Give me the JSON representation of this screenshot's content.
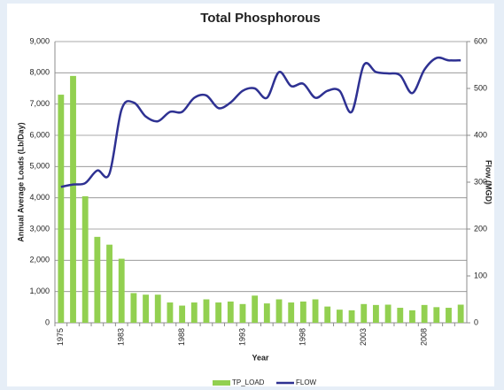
{
  "chart_data": {
    "type": "bar_line",
    "title": "Total Phosphorous",
    "x_label": "Year",
    "y_label": "Annual Average Loads (Lb/Day)",
    "y2_label": "Flow (MGD)",
    "categories": [
      "1975",
      null,
      null,
      null,
      null,
      "1983",
      null,
      null,
      null,
      null,
      "1988",
      null,
      null,
      null,
      null,
      "1993",
      null,
      null,
      null,
      null,
      "1998",
      null,
      null,
      null,
      null,
      "2003",
      null,
      null,
      null,
      null,
      "2008",
      null,
      null,
      null
    ],
    "series": [
      {
        "name": "TP_LOAD",
        "color": "#92d050",
        "type": "bar",
        "values": [
          7300,
          7900,
          4050,
          2750,
          2500,
          2050,
          950,
          900,
          900,
          650,
          550,
          650,
          750,
          650,
          680,
          600,
          870,
          620,
          750,
          650,
          680,
          750,
          520,
          420,
          400,
          600,
          570,
          580,
          480,
          400,
          570,
          500,
          480,
          580
        ]
      },
      {
        "name": "FLOW",
        "color": "#2e3192",
        "type": "line",
        "axis": "y2",
        "values": [
          290,
          295,
          298,
          325,
          318,
          455,
          470,
          440,
          430,
          450,
          450,
          480,
          485,
          458,
          470,
          495,
          500,
          480,
          535,
          505,
          510,
          480,
          495,
          495,
          450,
          550,
          535,
          532,
          528,
          490,
          540,
          565,
          560,
          560
        ]
      }
    ],
    "ylim": [
      0,
      9000
    ],
    "yticks": [
      0,
      {
        "value": 1000,
        "label": "1,000"
      },
      {
        "value": 2000,
        "label": "2,000"
      },
      {
        "value": 3000,
        "label": "3,000"
      },
      {
        "value": 4000,
        "label": "4,000"
      },
      {
        "value": 5000,
        "label": "5,000"
      },
      {
        "value": 6000,
        "label": "6,000"
      },
      {
        "value": 7000,
        "label": "7,000"
      },
      {
        "value": 8000,
        "label": "8,000"
      },
      {
        "value": 9000,
        "label": "9,000"
      }
    ],
    "y2lim": [
      0,
      600
    ],
    "y2ticks": [
      0,
      100,
      200,
      300,
      400,
      500,
      600
    ],
    "grid": true,
    "legend": "bottom"
  }
}
